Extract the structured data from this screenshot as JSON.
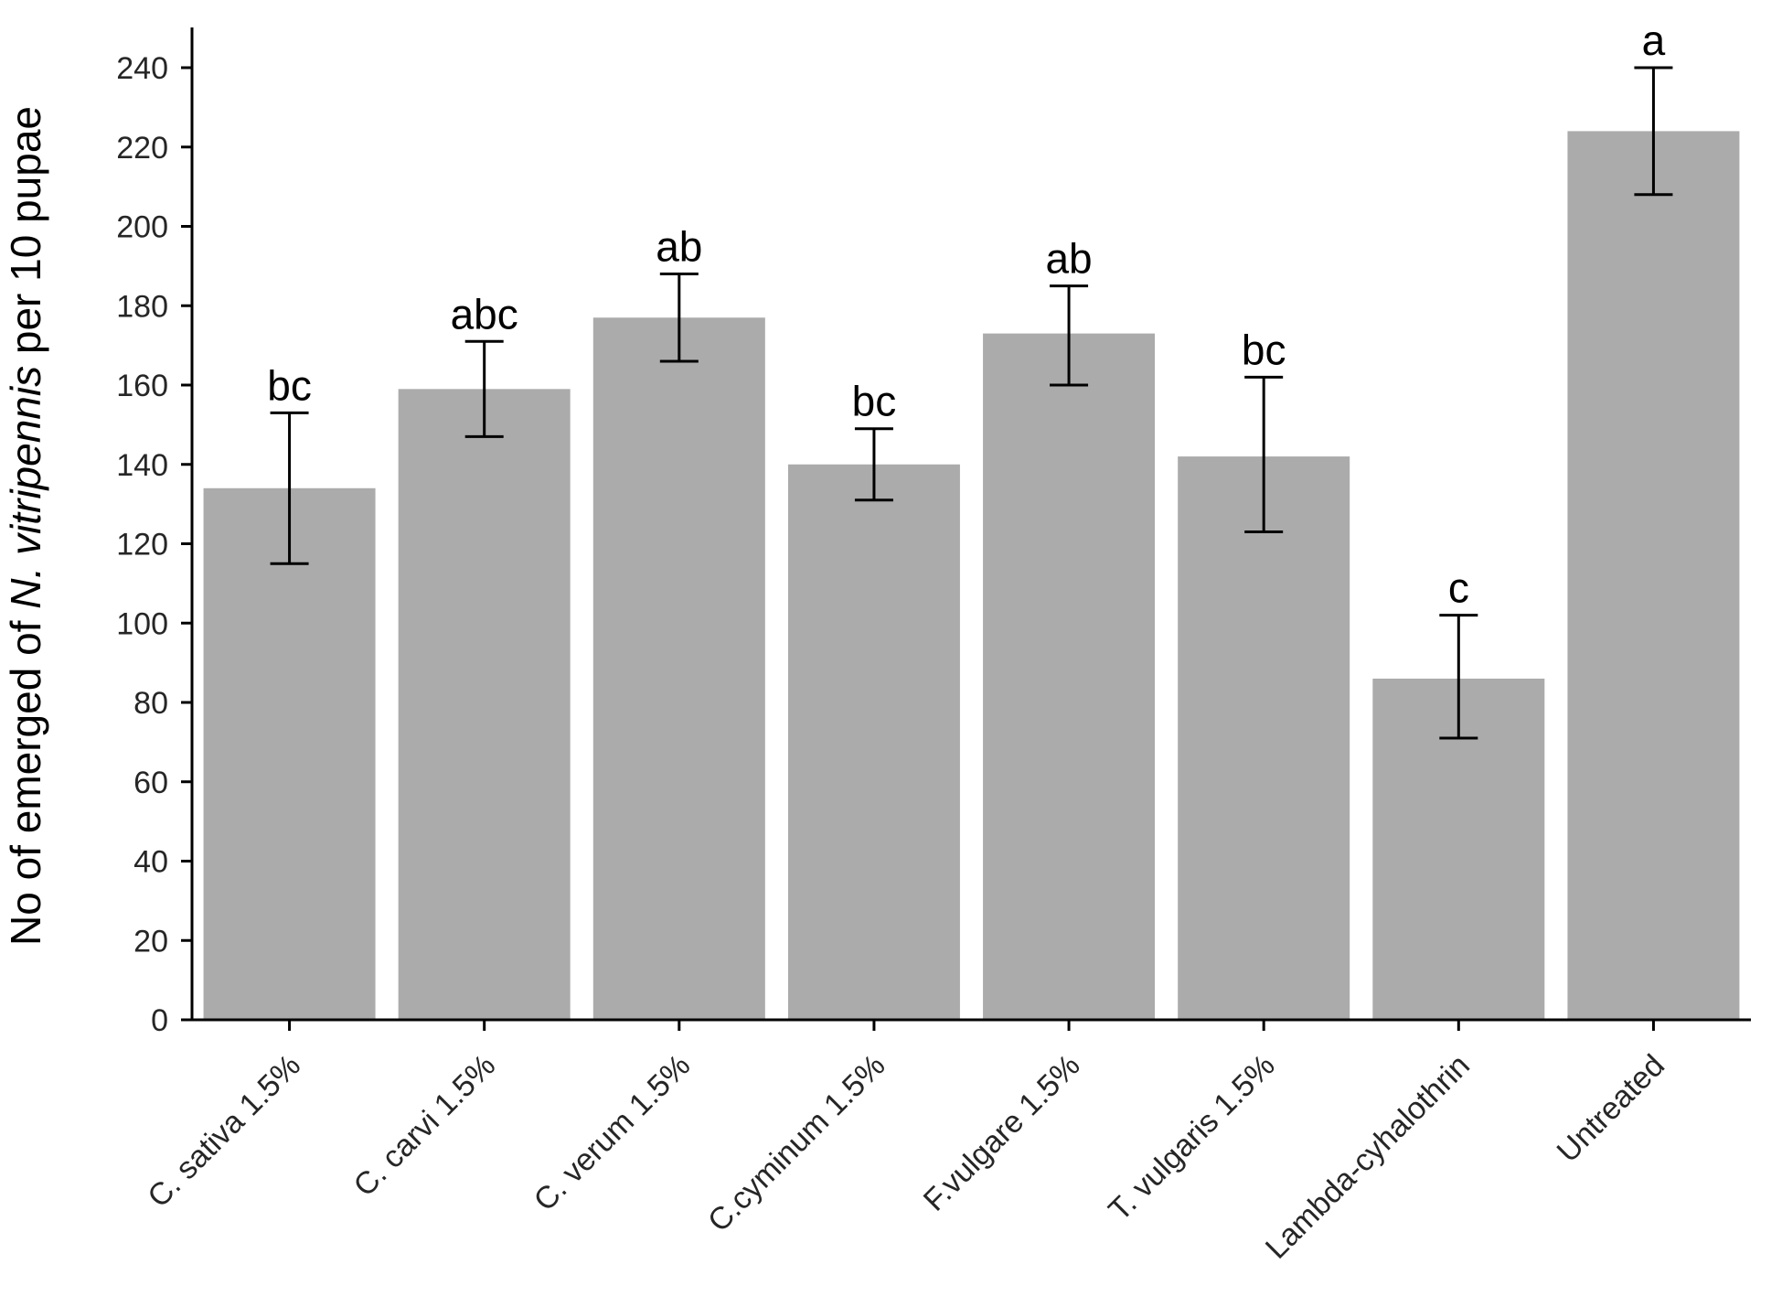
{
  "chart_data": {
    "type": "bar",
    "categories": [
      "C. sativa 1.5%",
      "C. carvi 1.5%",
      "C. verum 1.5%",
      "C.cyminum 1.5%",
      "F.vulgare 1.5%",
      "T. vulgaris 1.5%",
      "Lambda-cyhalothrin",
      "Untreated"
    ],
    "values": [
      134,
      159,
      177,
      140,
      173,
      142,
      86,
      224
    ],
    "error_low": [
      115,
      147,
      166,
      131,
      160,
      123,
      71,
      208
    ],
    "error_high": [
      153,
      171,
      188,
      149,
      185,
      162,
      102,
      240
    ],
    "significance": [
      "bc",
      "abc",
      "ab",
      "bc",
      "ab",
      "bc",
      "c",
      "a"
    ],
    "ylabel": {
      "prefix": "No of emerged of ",
      "italic": "N. vitripennis",
      "suffix": " per 10 pupae"
    },
    "xlabel": "",
    "title": "",
    "ylim": [
      0,
      250
    ],
    "yticks": [
      0,
      20,
      40,
      60,
      80,
      100,
      120,
      140,
      160,
      180,
      200,
      220,
      240
    ],
    "grid": false,
    "legend": "none",
    "colors": {
      "bar": "#ababab",
      "errorbar": "#000000",
      "axis": "#000000",
      "ticklabel": "#262626"
    }
  }
}
